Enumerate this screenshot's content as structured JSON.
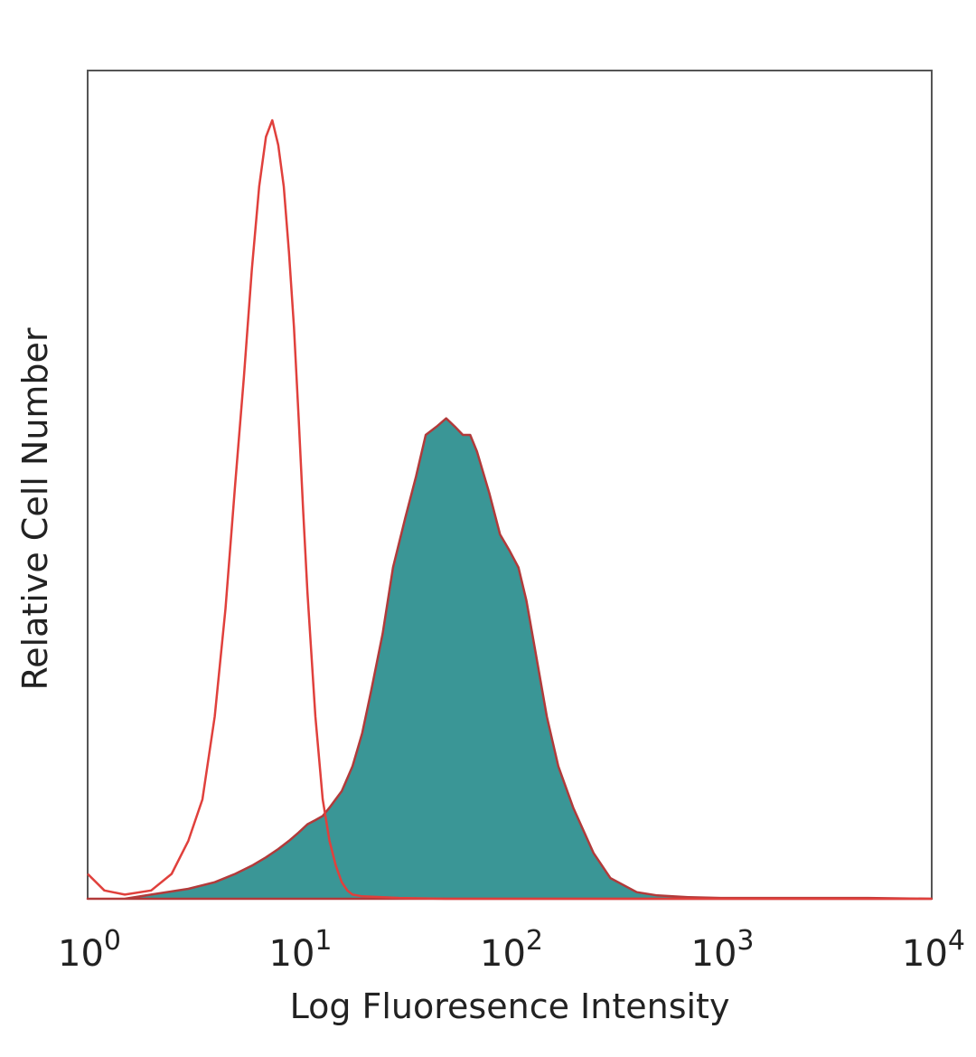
{
  "chart_data": {
    "type": "area",
    "title": "",
    "xlabel": "Log Fluoresence Intensity",
    "ylabel": "Relative Cell Number",
    "x_scale": "log",
    "xlim": [
      1,
      10000
    ],
    "ylim": [
      0,
      1.0
    ],
    "x_ticks": [
      {
        "base": "10",
        "exp": "0"
      },
      {
        "base": "10",
        "exp": "1"
      },
      {
        "base": "10",
        "exp": "2"
      },
      {
        "base": "10",
        "exp": "3"
      },
      {
        "base": "10",
        "exp": "4"
      }
    ],
    "grid": false,
    "legend": "none",
    "series": [
      {
        "style": "filled",
        "fill_color": "#3a9696",
        "line_color": "#b23a3a",
        "x": [
          1,
          1.5,
          2,
          3,
          4,
          5,
          6,
          7,
          8,
          9,
          10,
          11,
          12,
          13,
          14,
          16,
          18,
          20,
          22,
          25,
          28,
          32,
          36,
          40,
          45,
          50,
          55,
          60,
          65,
          70,
          80,
          90,
          100,
          110,
          120,
          130,
          150,
          170,
          200,
          250,
          300,
          400,
          500,
          700,
          1000,
          2000,
          5000,
          10000
        ],
        "y": [
          0,
          0,
          0.005,
          0.012,
          0.02,
          0.03,
          0.04,
          0.05,
          0.06,
          0.07,
          0.08,
          0.09,
          0.095,
          0.1,
          0.11,
          0.13,
          0.16,
          0.2,
          0.25,
          0.32,
          0.4,
          0.46,
          0.51,
          0.56,
          0.57,
          0.58,
          0.57,
          0.56,
          0.56,
          0.54,
          0.49,
          0.44,
          0.42,
          0.4,
          0.36,
          0.31,
          0.22,
          0.16,
          0.11,
          0.055,
          0.025,
          0.008,
          0.004,
          0.002,
          0.001,
          0.001,
          0.001,
          0
        ]
      },
      {
        "style": "outline",
        "line_color": "#e0403c",
        "x": [
          1,
          1.2,
          1.5,
          2,
          2.5,
          3,
          3.5,
          4,
          4.5,
          5,
          5.5,
          6,
          6.5,
          7,
          7.5,
          8,
          8.5,
          9,
          9.5,
          10,
          10.5,
          11,
          12,
          13,
          14,
          15,
          16,
          17,
          18,
          20,
          25,
          30,
          50,
          100,
          1000,
          10000
        ],
        "y": [
          0.03,
          0.01,
          0.005,
          0.01,
          0.03,
          0.07,
          0.12,
          0.22,
          0.35,
          0.5,
          0.63,
          0.76,
          0.86,
          0.92,
          0.94,
          0.91,
          0.86,
          0.78,
          0.69,
          0.58,
          0.47,
          0.37,
          0.22,
          0.12,
          0.07,
          0.04,
          0.02,
          0.01,
          0.005,
          0.003,
          0.002,
          0.001,
          0,
          0,
          0,
          0
        ]
      }
    ]
  }
}
